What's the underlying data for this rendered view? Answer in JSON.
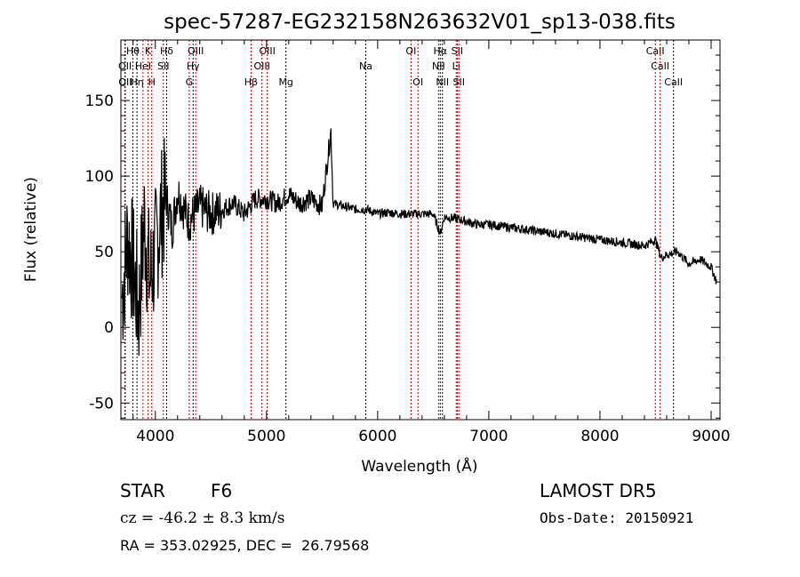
{
  "chart_data": {
    "type": "line",
    "title": "spec-57287-EG232158N263632V01_sp13-038.fits",
    "xlabel": "Wavelength (Å)",
    "ylabel": "Flux (relative)",
    "xlim": [
      3690,
      9080
    ],
    "ylim": [
      -61,
      190
    ],
    "xticks": [
      4000,
      5000,
      6000,
      7000,
      8000,
      9000
    ],
    "yticks": [
      -50,
      0,
      50,
      100,
      150
    ],
    "series": [
      {
        "name": "spectrum",
        "x": [
          3700,
          3750,
          3800,
          3850,
          3900,
          3950,
          4000,
          4050,
          4100,
          4150,
          4200,
          4300,
          4400,
          4500,
          4600,
          4700,
          4800,
          4900,
          5000,
          5100,
          5200,
          5300,
          5400,
          5500,
          5580,
          5600,
          5700,
          5800,
          5900,
          6000,
          6100,
          6200,
          6300,
          6400,
          6500,
          6563,
          6600,
          6700,
          6800,
          6900,
          7000,
          7200,
          7400,
          7600,
          7800,
          8000,
          8200,
          8400,
          8498,
          8550,
          8600,
          8700,
          8800,
          8900,
          9000,
          9050
        ],
        "y": [
          20,
          60,
          40,
          10,
          70,
          30,
          50,
          75,
          85,
          65,
          90,
          70,
          80,
          75,
          78,
          82,
          75,
          85,
          85,
          82,
          88,
          82,
          85,
          80,
          130,
          82,
          80,
          78,
          78,
          75,
          76,
          75,
          75,
          75,
          75,
          62,
          73,
          72,
          70,
          68,
          68,
          66,
          64,
          62,
          60,
          58,
          56,
          54,
          58,
          46,
          48,
          50,
          42,
          45,
          40,
          30
        ]
      }
    ],
    "lines": [
      {
        "label": "Hθ",
        "wl": 3798,
        "row": 1,
        "color": "#000000"
      },
      {
        "label": "K",
        "wl": 3934,
        "row": 1,
        "color": "#cc0000"
      },
      {
        "label": "Hδ",
        "wl": 4102,
        "row": 1,
        "color": "#000000"
      },
      {
        "label": "OIII",
        "wl": 4363,
        "row": 1,
        "color": "#cc0000"
      },
      {
        "label": "OIII",
        "wl": 5007,
        "row": 1,
        "color": "#cc0000"
      },
      {
        "label": "OI",
        "wl": 6300,
        "row": 1,
        "color": "#cc0000"
      },
      {
        "label": "Hα",
        "wl": 6563,
        "row": 1,
        "color": "#000000"
      },
      {
        "label": "SII",
        "wl": 6716,
        "row": 1,
        "color": "#cc0000"
      },
      {
        "label": "CaII",
        "wl": 8498,
        "row": 1,
        "color": "#cc0000"
      },
      {
        "label": "OII",
        "wl": 3727,
        "row": 2,
        "color": "#cc0000"
      },
      {
        "label": "HeI",
        "wl": 3889,
        "row": 2,
        "color": "#cc0000"
      },
      {
        "label": "SII",
        "wl": 4072,
        "row": 2,
        "color": "#cc0000"
      },
      {
        "label": "Hγ",
        "wl": 4340,
        "row": 2,
        "color": "#000000"
      },
      {
        "label": "OIII",
        "wl": 4959,
        "row": 2,
        "color": "#cc0000"
      },
      {
        "label": "Na",
        "wl": 5893,
        "row": 2,
        "color": "#000000"
      },
      {
        "label": "NII",
        "wl": 6548,
        "row": 2,
        "color": "#cc0000"
      },
      {
        "label": "Li",
        "wl": 6707,
        "row": 2,
        "color": "#cc0000"
      },
      {
        "label": "CaII",
        "wl": 8542,
        "row": 2,
        "color": "#cc0000"
      },
      {
        "label": "OII",
        "wl": 3729,
        "row": 3,
        "color": "#000000"
      },
      {
        "label": "Hη",
        "wl": 3835,
        "row": 3,
        "color": "#000000"
      },
      {
        "label": "H",
        "wl": 3968,
        "row": 3,
        "color": "#cc0000"
      },
      {
        "label": "G",
        "wl": 4305,
        "row": 3,
        "color": "#cc0000"
      },
      {
        "label": "Hβ",
        "wl": 4861,
        "row": 3,
        "color": "#cc0000"
      },
      {
        "label": "Mg",
        "wl": 5175,
        "row": 3,
        "color": "#000000"
      },
      {
        "label": "OI",
        "wl": 6363,
        "row": 3,
        "color": "#cc0000"
      },
      {
        "label": "NII",
        "wl": 6583,
        "row": 3,
        "color": "#000000"
      },
      {
        "label": "SII",
        "wl": 6731,
        "row": 3,
        "color": "#cc0000"
      },
      {
        "label": "CaII",
        "wl": 8662,
        "row": 3,
        "color": "#000000"
      }
    ]
  },
  "info": {
    "class": "STAR",
    "subclass": "F6",
    "cz": "cz = -46.2 ± 8.3 km/s",
    "coords": "RA = 353.02925, DEC =  26.79568",
    "survey": "LAMOST DR5",
    "obs_date": "Obs-Date: 20150921"
  }
}
